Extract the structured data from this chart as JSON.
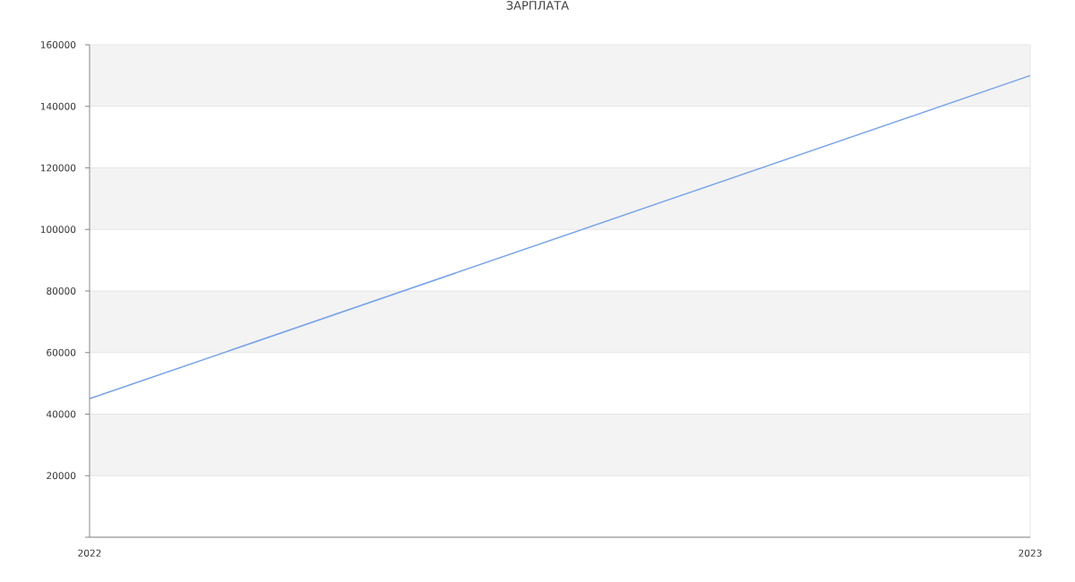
{
  "chart_data": {
    "type": "line",
    "title": "ЗАРПЛАТА",
    "x": [
      2022,
      2023
    ],
    "series": [
      {
        "color": "#76a2ef",
        "values": [
          45000,
          150000
        ]
      }
    ],
    "xlim": [
      2022,
      2023
    ],
    "xticks": [
      2022,
      2023
    ],
    "ylim": [
      0,
      160000
    ],
    "yticks": [
      {
        "value": 0,
        "label": null
      },
      20000,
      40000,
      60000,
      80000,
      100000,
      120000,
      140000,
      160000
    ],
    "grid": "y",
    "bands": [
      {
        "axis": "y",
        "from": 20000,
        "to": 40000,
        "color": "#f3f3f3"
      },
      {
        "axis": "y",
        "from": 60000,
        "to": 80000,
        "color": "#f3f3f3"
      },
      {
        "axis": "y",
        "from": 100000,
        "to": 120000,
        "color": "#f3f3f3"
      },
      {
        "axis": "y",
        "from": 140000,
        "to": 160000,
        "color": "#f3f3f3"
      }
    ]
  }
}
